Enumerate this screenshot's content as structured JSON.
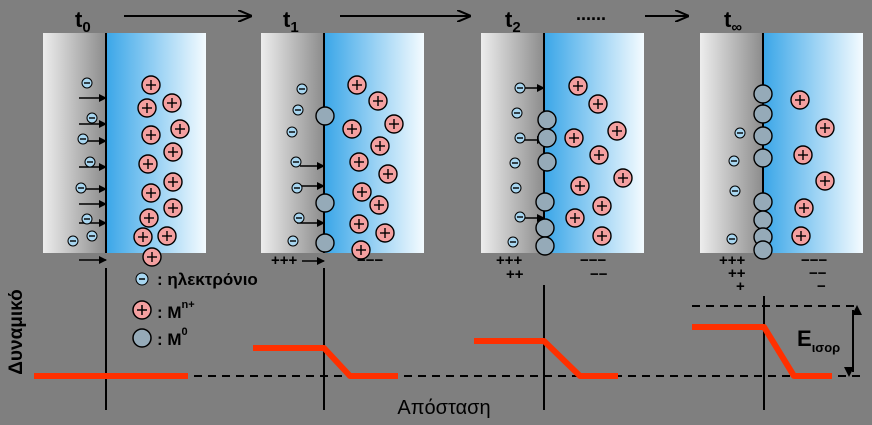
{
  "time_labels": [
    {
      "main": "t",
      "sub": "0"
    },
    {
      "main": "t",
      "sub": "1"
    },
    {
      "main": "t",
      "sub": "2"
    },
    {
      "main": "t",
      "sub": "∞"
    }
  ],
  "timeline_dots": "......",
  "legend": {
    "electron_label": ": ηλεκτρόνιο",
    "ion_label": ": M",
    "ion_sup": "n+",
    "atom_label": ": M",
    "atom_sup": "0"
  },
  "axis": {
    "y_label": "Δυναμικό",
    "x_label": "Απόσταση"
  },
  "charges": {
    "panel1": {
      "metal": [
        "+++"
      ],
      "solution": [
        "−−−"
      ]
    },
    "panel2": {
      "metal": [
        "+++",
        "++"
      ],
      "solution": [
        "−−−",
        "−−"
      ]
    },
    "panel3": {
      "metal": [
        "+++",
        "++",
        "+"
      ],
      "solution": [
        "−−−",
        "−−",
        "−"
      ]
    }
  },
  "equilibrium": {
    "main": "E",
    "sub": "ισορ"
  },
  "colors": {
    "background": "#7f7f7f",
    "potential_line": "#ff3000",
    "ion_fill": "#f4a0a0",
    "atom_fill": "#95aab8",
    "electron_fill": "#a8d6f0",
    "solution_blue": "#3aa6e8"
  },
  "potential_levels": [
    0,
    0.4,
    0.5,
    0.7
  ]
}
